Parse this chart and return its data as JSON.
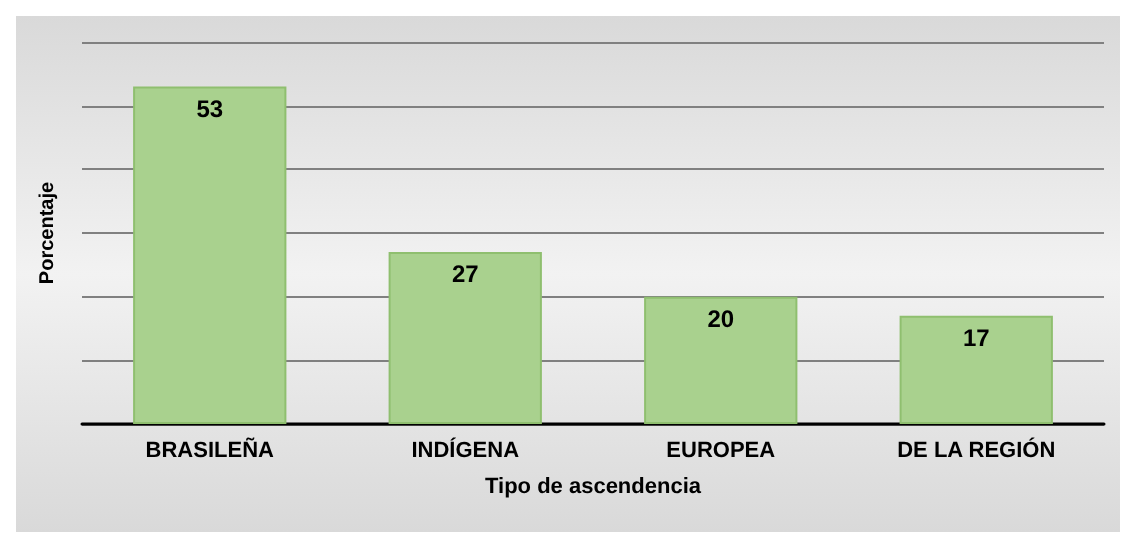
{
  "chart_data": {
    "type": "bar",
    "xlabel": "Tipo de ascendencia",
    "ylabel": "Porcentaje",
    "categories": [
      "BRASILEÑA",
      "INDÍGENA",
      "EUROPEA",
      "DE LA REGIÓN"
    ],
    "values": [
      53,
      27,
      20,
      17
    ],
    "color": "#a9d18e",
    "data_labels": true,
    "grid": "y",
    "tick_labels": "x",
    "ylim": [
      0,
      60
    ],
    "yticks": [
      {
        "value": 0,
        "label": null
      },
      {
        "value": 10,
        "label": null
      },
      {
        "value": 20,
        "label": null
      },
      {
        "value": 30,
        "label": null
      },
      {
        "value": 40,
        "label": null
      },
      {
        "value": 50,
        "label": null
      },
      {
        "value": 60,
        "label": null
      }
    ]
  }
}
